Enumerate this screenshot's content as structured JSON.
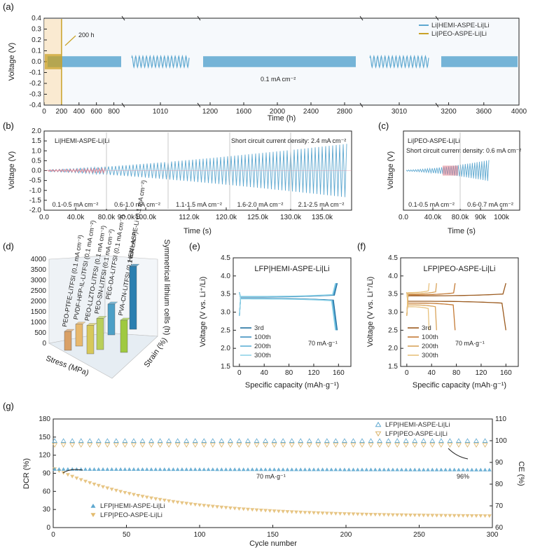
{
  "chart_data": [
    {
      "panel": "(a)",
      "type": "line",
      "ylabel": "Voltage (V)",
      "xlabel": "Time (h)",
      "ylim": [
        -0.4,
        0.4
      ],
      "yticks": [
        "-0.4",
        "-0.3",
        "-0.2",
        "-0.1",
        "0.0",
        "0.1",
        "0.2",
        "0.3",
        "0.4"
      ],
      "segments": [
        {
          "xticks": [
            "0",
            "200",
            "400",
            "600",
            "800"
          ],
          "range": [
            0,
            900
          ]
        },
        {
          "xticks": [
            "1010"
          ],
          "range": [
            990,
            1030
          ]
        },
        {
          "xticks": [
            "1200",
            "1600",
            "2000",
            "2400",
            "2800"
          ],
          "range": [
            1100,
            2950
          ]
        },
        {
          "xticks": [
            "3010"
          ],
          "range": [
            2990,
            3030
          ]
        },
        {
          "xticks": [
            "3200",
            "3600",
            "4000"
          ],
          "range": [
            3100,
            4000
          ]
        }
      ],
      "annotations": [
        "200 h",
        "0.1 mA cm⁻²"
      ],
      "series": [
        {
          "name": "Li|HEMI-ASPE-Li|Li",
          "color": "#5ea8d0",
          "amplitude": 0.05,
          "x_end": 4000
        },
        {
          "name": "Li|PEO-ASPE-Li|Li",
          "color": "#c9a227",
          "amplitude": 0.07,
          "x_end": 200
        }
      ]
    },
    {
      "panel": "(b)",
      "type": "line",
      "ylabel": "Voltage (V)",
      "xlabel": "Time (s)",
      "ylim": [
        -2.0,
        2.0
      ],
      "yticks": [
        "-2.0",
        "-1.5",
        "-1.0",
        "-0.5",
        "0.0",
        "0.5",
        "1.0",
        "1.5",
        "2.0"
      ],
      "xticks": [
        "0.0",
        "40.0k",
        "80.0k",
        "90.0k",
        "100.0k",
        "112.0k",
        "120.0k",
        "125.0k",
        "130.0k",
        "135.0k"
      ],
      "cell": "Li|HEMI-ASPE-Li|Li",
      "annotation": "Short circuit current density: 2.4 mA cm⁻²",
      "regions": [
        "0.1-0.5 mA cm⁻²",
        "0.6-1.0 mA cm⁻²",
        "1.1-1.5 mA cm⁻²",
        "1.6-2.0 mA cm⁻²",
        "2.1-2.5 mA cm⁻²"
      ],
      "peak_voltage": 1.3
    },
    {
      "panel": "(c)",
      "type": "line",
      "ylabel": "Voltage (V)",
      "xlabel": "Time (s)",
      "ylim": [
        -2.0,
        2.0
      ],
      "xticks": [
        "0.0",
        "40.0k",
        "80.0k",
        "90k",
        "100k"
      ],
      "cell": "Li|PEO-ASPE-Li|Li",
      "annotation": "Short circuit current density: 0.6 mA cm⁻²",
      "regions": [
        "0.1-0.5 mA cm⁻²",
        "0.6-0.7 mA cm⁻²"
      ],
      "peak_voltage": 0.5
    },
    {
      "panel": "(d)",
      "type": "bar",
      "zlabel": "Symmetrical lithium cells (h)",
      "zticks": [
        "0",
        "500",
        "1000",
        "1500",
        "2000",
        "2500",
        "3000",
        "3500",
        "4000"
      ],
      "xlabel": "Stress (MPa)",
      "ylabel": "Strain (%)",
      "bar_labels": [
        "PEO-PTFE-LiTFSI (0.1 mA cm⁻²)",
        "PVDF-HFP-IL-LiTFSI (0.1 mA cm⁻²)",
        "PEO-LLZTO-LiTFSI (0.1 mA cm⁻²)",
        "PEO-SN-LiTFSI (0.1 mA cm⁻²)",
        "PEG-DA-LiTFSI (0.1 mA cm⁻²)",
        "PVA-CN-LiTFSI (0.1 mA cm⁻²)",
        "HEMI-ASPE-Li (0.1 mA cm⁻²)"
      ],
      "values": [
        900,
        1100,
        1300,
        1500,
        1800,
        1500,
        4000
      ],
      "colors": [
        "#d9a066",
        "#e8b86d",
        "#d7c85a",
        "#b9cf5a",
        "#4d9fc6",
        "#9fc940",
        "#2b7fb0"
      ]
    },
    {
      "panel": "(e)",
      "type": "line",
      "title": "LFP|HEMI-ASPE-Li|Li",
      "xlabel": "Specific capacity (mAh·g⁻¹)",
      "ylabel": "Voltage (V vs. Li⁺/Li)",
      "xlim": [
        -10,
        180
      ],
      "ylim": [
        1.5,
        4.5
      ],
      "xticks": [
        "0",
        "40",
        "80",
        "120",
        "160"
      ],
      "yticks": [
        "1.5",
        "2.0",
        "2.5",
        "3.0",
        "3.5",
        "4.0",
        "4.5"
      ],
      "rate": "70 mA·g⁻¹",
      "series": [
        {
          "name": "3rd",
          "capacity": 158,
          "color": "#1f6f9f"
        },
        {
          "name": "100th",
          "capacity": 157,
          "color": "#3d8fbf"
        },
        {
          "name": "200th",
          "capacity": 156,
          "color": "#5eb0d6"
        },
        {
          "name": "300th",
          "capacity": 155,
          "color": "#8fd3e8"
        }
      ]
    },
    {
      "panel": "(f)",
      "type": "line",
      "title": "LFP|PEO-ASPE-Li|Li",
      "xlabel": "Specific capacity (mAh·g⁻¹)",
      "ylabel": "Voltage (V vs. Li⁺/Li)",
      "xlim": [
        -10,
        180
      ],
      "ylim": [
        1.5,
        4.5
      ],
      "xticks": [
        "0",
        "40",
        "80",
        "120",
        "160"
      ],
      "yticks": [
        "1.5",
        "2.0",
        "2.5",
        "3.0",
        "3.5",
        "4.0",
        "4.5"
      ],
      "rate": "70 mA·g⁻¹",
      "series": [
        {
          "name": "3rd",
          "capacity": 160,
          "color": "#9b5a1e"
        },
        {
          "name": "100th",
          "capacity": 78,
          "color": "#c47a35"
        },
        {
          "name": "200th",
          "capacity": 48,
          "color": "#d9a35a"
        },
        {
          "name": "300th",
          "capacity": 36,
          "color": "#e8c27d"
        }
      ]
    },
    {
      "panel": "(g)",
      "type": "scatter",
      "xlabel": "Cycle number",
      "ylabel": "DCR (%)",
      "y2label": "CE (%)",
      "xlim": [
        0,
        300
      ],
      "ylim": [
        0,
        180
      ],
      "y2lim": [
        60,
        110
      ],
      "xticks": [
        "0",
        "50",
        "100",
        "150",
        "200",
        "250",
        "300"
      ],
      "yticks": [
        "0",
        "30",
        "60",
        "90",
        "120",
        "150",
        "180"
      ],
      "y2ticks": [
        "60",
        "70",
        "80",
        "90",
        "100",
        "110"
      ],
      "annotations": [
        "70 mA·g⁻¹",
        "96%"
      ],
      "series": [
        {
          "name": "LFP|HEMI-ASPE-Li|Li",
          "axis": "CE",
          "marker": "open-triangle",
          "color": "#5ea8d0",
          "value": 100
        },
        {
          "name": "LFP|PEO-ASPE-Li|Li",
          "axis": "CE",
          "marker": "open-triangle-down",
          "color": "#d9b36a",
          "value": 98
        },
        {
          "name": "LFP|HEMI-ASPE-Li|Li",
          "axis": "DCR",
          "marker": "filled-triangle",
          "color": "#5ea8d0",
          "start": 97,
          "end": 96
        },
        {
          "name": "LFP|PEO-ASPE-Li|Li",
          "axis": "DCR",
          "marker": "filled-triangle-down",
          "color": "#e3bb6e",
          "start": 97,
          "end": 18
        }
      ]
    }
  ]
}
